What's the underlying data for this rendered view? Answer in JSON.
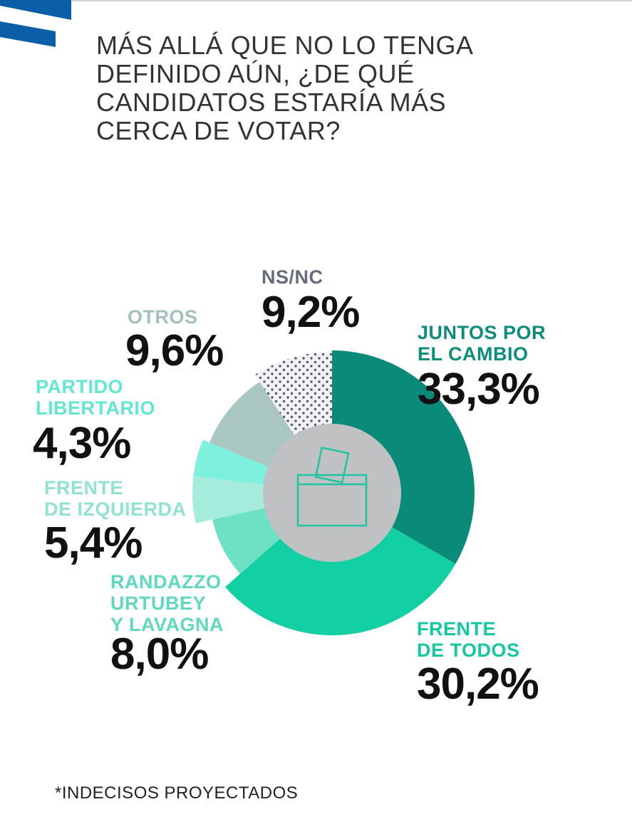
{
  "title_lines": [
    "MÁS ALLÁ QUE NO LO TENGA",
    "DEFINIDO AÚN, ¿DE QUÉ",
    "CANDIDATOS ESTARÍA MÁS",
    "CERCA DE VOTAR?"
  ],
  "footnote": "*INDECISOS PROYECTADOS",
  "colors": {
    "brand": "#0b5fa8",
    "juntos": "#0a8a78",
    "frente_todos": "#12cfa4",
    "randazzo": "#6ee0c4",
    "izquierda": "#a6ecdc",
    "libertario": "#7df0de",
    "otros": "#a9c6c2",
    "nsnc_bg": "#f2f2f4",
    "nsnc_dot": "#555a6a",
    "center": "#bfc1c3",
    "icon": "#1fc4a2"
  },
  "icon": "ballot-box-icon",
  "chart_data": {
    "type": "pie",
    "variant": "donut",
    "title": "MÁS ALLÁ QUE NO LO TENGA DEFINIDO AÚN, ¿DE QUÉ CANDIDATOS ESTARÍA MÁS CERCA DE VOTAR?",
    "slices": [
      {
        "label_lines": [
          "JUNTOS POR",
          "EL CAMBIO"
        ],
        "value": 33.3,
        "display": "33,3%",
        "color": "#0a8a78",
        "label_color": "#0b8d7a"
      },
      {
        "label_lines": [
          "FRENTE",
          "DE TODOS"
        ],
        "value": 30.2,
        "display": "30,2%",
        "color": "#12cfa4",
        "label_color": "#14c9a0"
      },
      {
        "label_lines": [
          "RANDAZZO",
          "URTUBEY",
          "Y LAVAGNA"
        ],
        "value": 8.0,
        "display": "8,0%",
        "color": "#6ee0c4",
        "label_color": "#5fd9bd"
      },
      {
        "label_lines": [
          "FRENTE",
          "DE IZQUIERDA"
        ],
        "value": 5.4,
        "display": "5,4%",
        "color": "#a6ecdc",
        "label_color": "#8fe3cf"
      },
      {
        "label_lines": [
          "PARTIDO",
          "LIBERTARIO"
        ],
        "value": 4.3,
        "display": "4,3%",
        "color": "#7df0de",
        "label_color": "#63e6d2"
      },
      {
        "label_lines": [
          "OTROS"
        ],
        "value": 9.6,
        "display": "9,6%",
        "color": "#a9c6c2",
        "label_color": "#a3c1bc"
      },
      {
        "label_lines": [
          "NS/NC"
        ],
        "value": 9.2,
        "display": "9,2%",
        "color": "pattern",
        "label_color": "#666b7c"
      }
    ]
  }
}
